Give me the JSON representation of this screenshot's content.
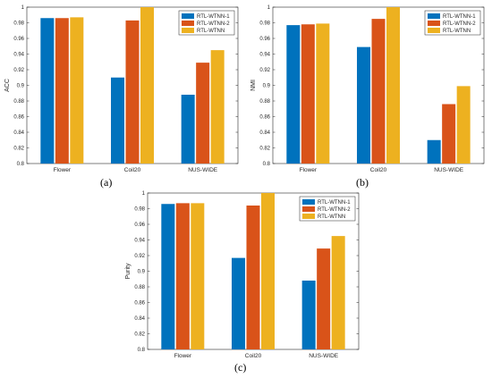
{
  "colors": {
    "series_1": "#0072BD",
    "series_2": "#D95319",
    "series_3": "#EDB120"
  },
  "chart_data": [
    {
      "type": "bar",
      "caption": "(a)",
      "ylabel": "ACC",
      "categories": [
        "Flower",
        "Coil20",
        "NUS-WIDE"
      ],
      "ylim": [
        0.8,
        1.0
      ],
      "yticks": [
        "0.8",
        "0.82",
        "0.84",
        "0.86",
        "0.88",
        "0.9",
        "0.92",
        "0.94",
        "0.96",
        "0.98",
        "1"
      ],
      "legend_position": "top-right",
      "series": [
        {
          "name": "RTL-WTNN-1",
          "values": [
            0.986,
            0.91,
            0.888
          ]
        },
        {
          "name": "RTL-WTNN-2",
          "values": [
            0.986,
            0.983,
            0.929
          ]
        },
        {
          "name": "RTL-WTNN",
          "values": [
            0.987,
            1.0,
            0.945
          ]
        }
      ]
    },
    {
      "type": "bar",
      "caption": "(b)",
      "ylabel": "NMI",
      "categories": [
        "Flower",
        "Coil20",
        "NUS-WIDE"
      ],
      "ylim": [
        0.8,
        1.0
      ],
      "yticks": [
        "0.8",
        "0.82",
        "0.84",
        "0.86",
        "0.88",
        "0.9",
        "0.92",
        "0.94",
        "0.96",
        "0.98",
        "1"
      ],
      "legend_position": "top-right",
      "series": [
        {
          "name": "RTL-WTNN-1",
          "values": [
            0.977,
            0.949,
            0.83
          ]
        },
        {
          "name": "RTL-WTNN-2",
          "values": [
            0.978,
            0.985,
            0.876
          ]
        },
        {
          "name": "RTL-WTNN",
          "values": [
            0.979,
            1.0,
            0.899
          ]
        }
      ]
    },
    {
      "type": "bar",
      "caption": "(c)",
      "ylabel": "Purity",
      "categories": [
        "Flower",
        "Coil20",
        "NUS-WIDE"
      ],
      "ylim": [
        0.8,
        1.0
      ],
      "yticks": [
        "0.8",
        "0.82",
        "0.84",
        "0.86",
        "0.88",
        "0.9",
        "0.92",
        "0.94",
        "0.96",
        "0.98",
        "1"
      ],
      "legend_position": "top-right",
      "series": [
        {
          "name": "RTL-WTNN-1",
          "values": [
            0.986,
            0.917,
            0.888
          ]
        },
        {
          "name": "RTL-WTNN-2",
          "values": [
            0.987,
            0.984,
            0.929
          ]
        },
        {
          "name": "RTL-WTNN",
          "values": [
            0.987,
            1.0,
            0.945
          ]
        }
      ]
    }
  ]
}
